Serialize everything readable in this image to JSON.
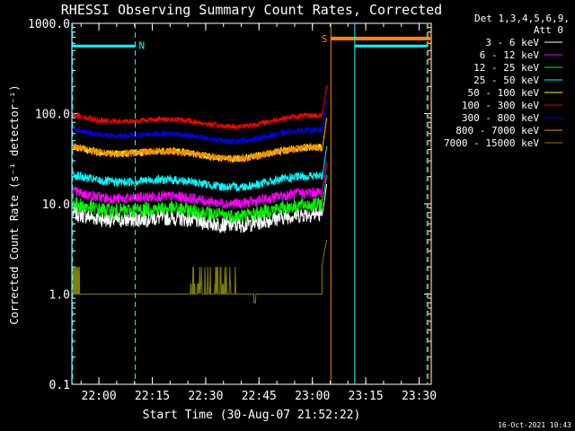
{
  "chart_data": {
    "type": "line",
    "title": "RHESSI Observing Summary Count Rates, Corrected",
    "ylabel": "Corrected Count Rate (s⁻¹ detector⁻¹)",
    "xlabel": "Start Time (30-Aug-07 21:52:22)",
    "yscale": "log",
    "ylim": [
      0.1,
      1000
    ],
    "xlim_minutes_after_start": [
      0,
      101
    ],
    "y_ticks": [
      "0.1",
      "1.0",
      "10.0",
      "100.0",
      "1000.0"
    ],
    "x_ticks": [
      {
        "label": "22:00",
        "t": 7.6
      },
      {
        "label": "22:15",
        "t": 22.6
      },
      {
        "label": "22:30",
        "t": 37.6
      },
      {
        "label": "22:45",
        "t": 52.6
      },
      {
        "label": "23:00",
        "t": 67.6
      },
      {
        "label": "23:15",
        "t": 82.6
      },
      {
        "label": "23:30",
        "t": 97.6
      }
    ],
    "legend_header": [
      "Det 1,3,4,5,6,9,",
      "Att 0"
    ],
    "legend_placement": "top-right",
    "series": [
      {
        "name": "3 - 6 keV",
        "color": "#ffffff",
        "level": 5.5,
        "noise": 0.09
      },
      {
        "name": "6 - 12 keV",
        "color": "#ff00ff",
        "level": 9.5,
        "noise": 0.06
      },
      {
        "name": "12 - 25 keV",
        "color": "#00ff00",
        "level": 7.0,
        "noise": 0.08
      },
      {
        "name": "25 - 50 keV",
        "color": "#00ffff",
        "level": 14.5,
        "noise": 0.05
      },
      {
        "name": "50 - 100 keV",
        "color": "#ffff00",
        "level": 30.0,
        "noise": 0.04
      },
      {
        "name": "100 - 300 keV",
        "color": "#ff0000",
        "level": 68.0,
        "noise": 0.03
      },
      {
        "name": "300 - 800 keV",
        "color": "#0000ff",
        "level": 47.0,
        "noise": 0.03
      },
      {
        "name": "800 - 7000 keV",
        "color": "#ff8800",
        "level": 30.0,
        "noise": 0.04
      },
      {
        "name": "7000 - 15000 keV",
        "color": "#808000",
        "level": 1.0,
        "noise": 0
      }
    ],
    "markers": [
      {
        "label": "N",
        "color": "#00ffff",
        "t": 17.8,
        "style": "dashed"
      },
      {
        "label": "S",
        "color": "#ff8800",
        "t": 72.8,
        "style": "solid"
      }
    ]
  },
  "footer": {
    "timestamp": "16-Oct-2021 10:43"
  }
}
